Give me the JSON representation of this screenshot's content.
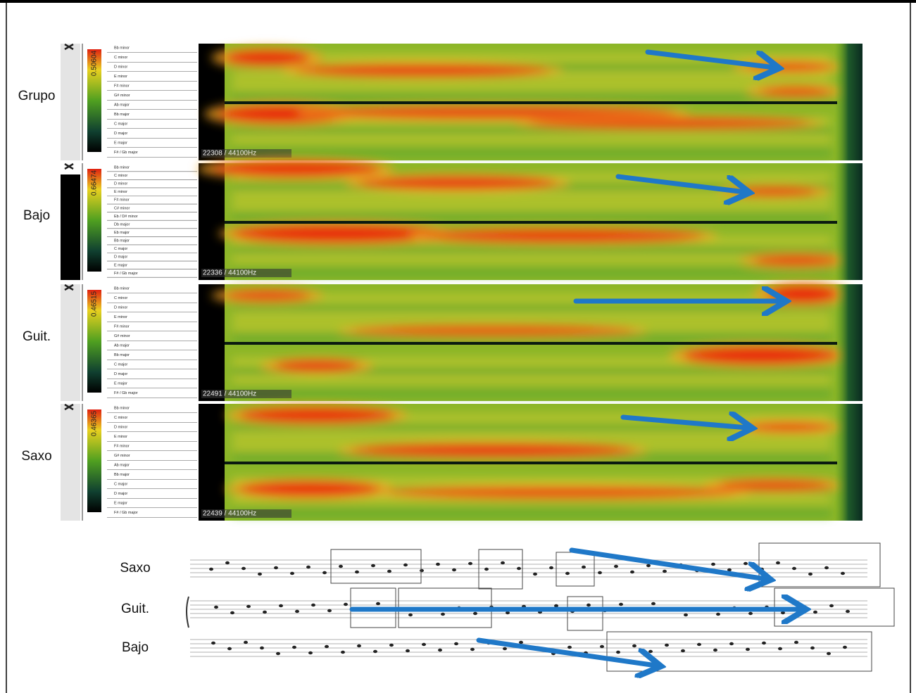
{
  "panels": [
    {
      "label": "Grupo",
      "scale_value": "0.50604",
      "frequency": "22308 / 44100Hz",
      "keys": [
        "Bb minor",
        "C minor",
        "D minor",
        "E minor",
        "F# minor",
        "G# minor",
        "Ab major",
        "Bb major",
        "C major",
        "D major",
        "E major",
        "F# / Gb major"
      ]
    },
    {
      "label": "Bajo",
      "scale_value": "0.66474",
      "frequency": "22336 / 44100Hz",
      "keys": [
        "Bb minor",
        "C minor",
        "D minor",
        "E minor",
        "F# minor",
        "C# minor",
        "Eb / D# minor",
        "Db major",
        "Eb major",
        "Bb major",
        "C major",
        "D major",
        "E major",
        "F# / Gb major"
      ]
    },
    {
      "label": "Guit.",
      "scale_value": "0.46515",
      "frequency": "22491 / 44100Hz",
      "keys": [
        "Bb minor",
        "C minor",
        "D minor",
        "E minor",
        "F# minor",
        "G# minor",
        "Ab major",
        "Bb major",
        "C major",
        "D major",
        "E major",
        "F# / Gb major"
      ]
    },
    {
      "label": "Saxo",
      "scale_value": "0.46365",
      "frequency": "22439 / 44100Hz",
      "keys": [
        "Bb minor",
        "C minor",
        "D minor",
        "E minor",
        "F# minor",
        "G# minor",
        "Ab major",
        "Bb major",
        "C major",
        "D major",
        "E major",
        "F# / Gb major"
      ]
    }
  ],
  "score": {
    "staves": [
      "Saxo",
      "Guit.",
      "Bajo"
    ]
  }
}
